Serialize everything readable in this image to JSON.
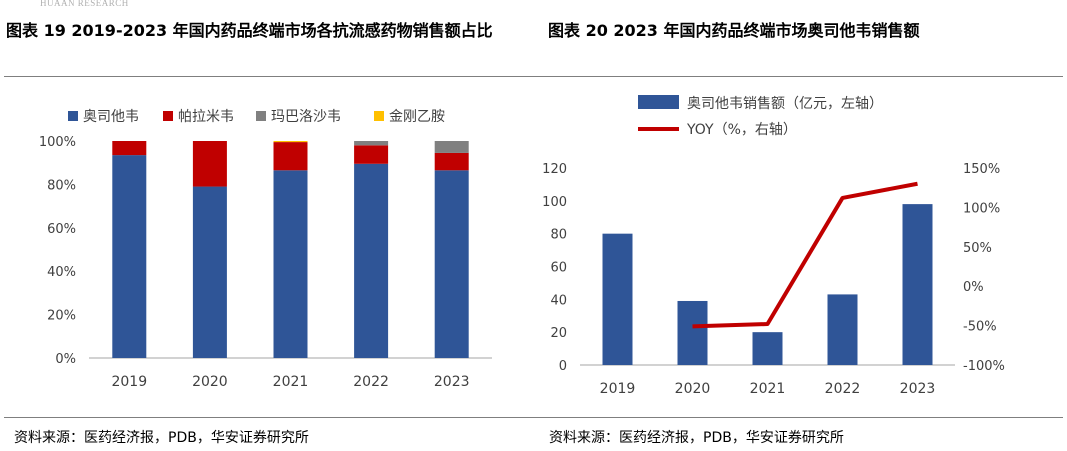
{
  "header": {
    "watermark": "HUAAN RESEARCH"
  },
  "figures": {
    "left_title": "图表 19 2019-2023 年国内药品终端市场各抗流感药物销售额占比",
    "right_title": "图表 20 2023 年国内药品终端市场奥司他韦销售额",
    "left_source": "资料来源：医药经济报，PDB，华安证券研究所",
    "right_source": "资料来源：医药经济报，PDB，华安证券研究所"
  },
  "chart_data": [
    {
      "type": "bar",
      "stacked": true,
      "percent": true,
      "categories": [
        "2019",
        "2020",
        "2021",
        "2022",
        "2023"
      ],
      "series": [
        {
          "name": "奥司他韦",
          "color": "#2f5597",
          "values": [
            93.5,
            79,
            86.5,
            89.5,
            86.5
          ]
        },
        {
          "name": "帕拉米韦",
          "color": "#c00000",
          "values": [
            6.5,
            21,
            13,
            8.5,
            8
          ]
        },
        {
          "name": "玛巴洛沙韦",
          "color": "#808080",
          "values": [
            0,
            0,
            0,
            2,
            5.5
          ]
        },
        {
          "name": "金刚乙胺",
          "color": "#ffc000",
          "values": [
            0,
            0,
            0.5,
            0,
            0
          ]
        }
      ],
      "yticks": [
        "0%",
        "20%",
        "40%",
        "60%",
        "80%",
        "100%"
      ],
      "ylim": [
        0,
        100
      ],
      "legend": "top"
    },
    {
      "type": "bar+line",
      "categories": [
        "2019",
        "2020",
        "2021",
        "2022",
        "2023"
      ],
      "bar_series": {
        "name": "奥司他韦销售额（亿元，左轴）",
        "color": "#2f5597",
        "values": [
          80,
          39,
          20,
          43,
          98
        ]
      },
      "line_series": {
        "name": "YOY（%，右轴）",
        "color": "#c00000",
        "values": [
          null,
          -51,
          -48,
          112,
          130
        ]
      },
      "y_left_ticks": [
        "0",
        "20",
        "40",
        "60",
        "80",
        "100",
        "120"
      ],
      "y_left_lim": [
        0,
        120
      ],
      "y_right_ticks": [
        "-100%",
        "-50%",
        "0%",
        "50%",
        "100%",
        "150%"
      ],
      "y_right_lim": [
        -100,
        150
      ],
      "legend": "top"
    }
  ]
}
